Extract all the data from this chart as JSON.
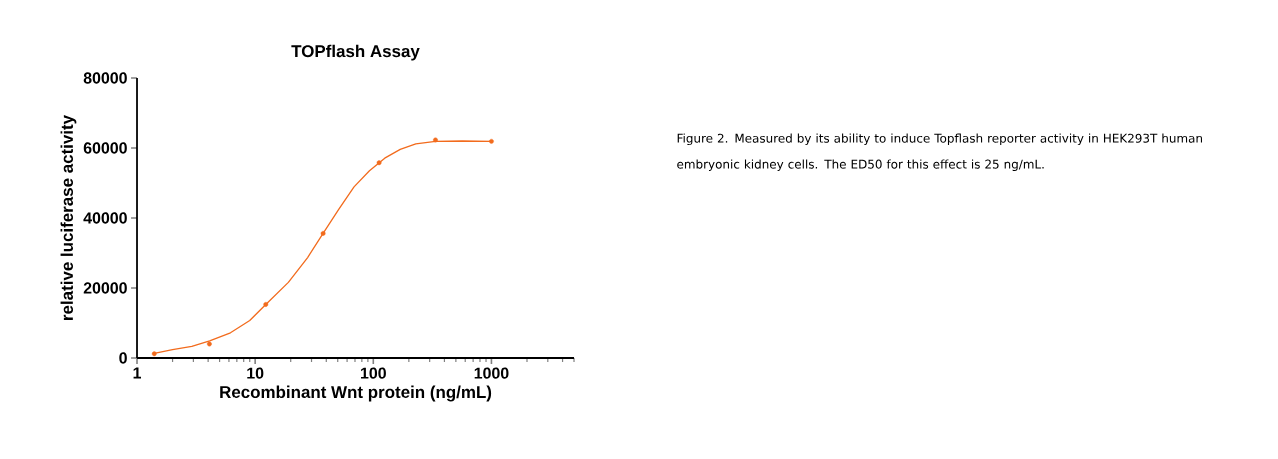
{
  "chart_data": {
    "type": "scatter",
    "title": "TOPflash Assay",
    "xlabel": "Recombinant Wnt protein (ng/mL)",
    "ylabel": "relative luciferase activity",
    "log": "x",
    "marker": "circle",
    "xlim": [
      1,
      5000
    ],
    "xticks": [
      1,
      10,
      100,
      1000
    ],
    "ylim": [
      0,
      80000
    ],
    "yticks": [
      0,
      20000,
      40000,
      60000,
      80000
    ],
    "x": [
      1.4,
      4.1,
      12.3,
      37.6,
      112,
      336,
      1000
    ],
    "series": [
      {
        "color": "#f26b1d",
        "values": [
          1200,
          4000,
          15300,
          35600,
          55800,
          62300,
          61900
        ]
      },
      {
        "type": "line",
        "marker": "none",
        "color": "#f26b1d",
        "x": [
          1.4,
          2.0,
          2.91,
          4.12,
          6.18,
          9.0,
          12.3,
          19.1,
          27.8,
          37.6,
          50.8,
          68.7,
          92.8,
          125,
          169,
          229,
          336,
          565,
          1000
        ],
        "values": [
          1300,
          2400,
          3300,
          4900,
          7200,
          10700,
          15300,
          21600,
          28700,
          35600,
          42400,
          48900,
          53500,
          57100,
          59600,
          61200,
          61900,
          62000,
          61900
        ]
      }
    ],
    "annotations": [
      "Figure 2. Measured by its ability to induce Topflash reporter activity in HEK293T human embryonic kidney cells. The ED50 for this effect is 25 ng/mL."
    ]
  }
}
